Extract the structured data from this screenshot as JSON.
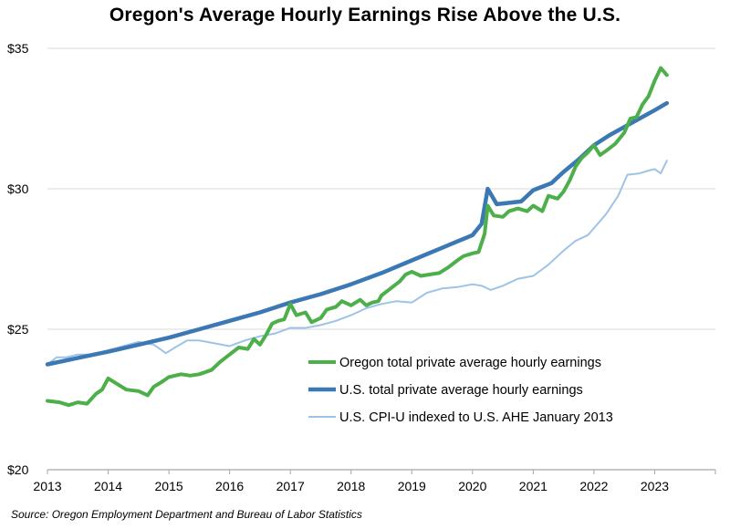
{
  "chart_data": {
    "type": "line",
    "title": "Oregon's Average Hourly Earnings Rise Above the U.S.",
    "xlabel": "",
    "ylabel": "",
    "xlim": [
      2013.0,
      2024.0
    ],
    "ylim": [
      20,
      35
    ],
    "x_ticks": [
      "2013",
      "2014",
      "2015",
      "2016",
      "2017",
      "2018",
      "2019",
      "2020",
      "2021",
      "2022",
      "2023"
    ],
    "y_ticks": [
      "$20",
      "$25",
      "$30",
      "$35"
    ],
    "grid": "horizontal",
    "legend_position": "lower-right",
    "series": [
      {
        "name": "Oregon total private average hourly earnings",
        "color": "#4daf4a",
        "points": [
          [
            2013.0,
            22.45
          ],
          [
            2013.2,
            22.4
          ],
          [
            2013.35,
            22.3
          ],
          [
            2013.5,
            22.4
          ],
          [
            2013.65,
            22.35
          ],
          [
            2013.8,
            22.7
          ],
          [
            2013.9,
            22.85
          ],
          [
            2014.0,
            23.25
          ],
          [
            2014.15,
            23.05
          ],
          [
            2014.3,
            22.85
          ],
          [
            2014.5,
            22.8
          ],
          [
            2014.65,
            22.65
          ],
          [
            2014.75,
            22.95
          ],
          [
            2014.9,
            23.15
          ],
          [
            2015.0,
            23.3
          ],
          [
            2015.2,
            23.4
          ],
          [
            2015.35,
            23.35
          ],
          [
            2015.5,
            23.4
          ],
          [
            2015.7,
            23.55
          ],
          [
            2015.85,
            23.85
          ],
          [
            2016.0,
            24.1
          ],
          [
            2016.15,
            24.35
          ],
          [
            2016.3,
            24.3
          ],
          [
            2016.4,
            24.65
          ],
          [
            2016.5,
            24.45
          ],
          [
            2016.6,
            24.8
          ],
          [
            2016.7,
            25.2
          ],
          [
            2016.8,
            25.3
          ],
          [
            2016.9,
            25.35
          ],
          [
            2017.0,
            25.9
          ],
          [
            2017.1,
            25.5
          ],
          [
            2017.25,
            25.6
          ],
          [
            2017.35,
            25.25
          ],
          [
            2017.5,
            25.4
          ],
          [
            2017.6,
            25.7
          ],
          [
            2017.75,
            25.8
          ],
          [
            2017.85,
            26.0
          ],
          [
            2018.0,
            25.85
          ],
          [
            2018.15,
            26.05
          ],
          [
            2018.25,
            25.85
          ],
          [
            2018.35,
            25.95
          ],
          [
            2018.45,
            26.0
          ],
          [
            2018.5,
            26.2
          ],
          [
            2018.65,
            26.45
          ],
          [
            2018.8,
            26.7
          ],
          [
            2018.9,
            26.95
          ],
          [
            2019.0,
            27.05
          ],
          [
            2019.15,
            26.9
          ],
          [
            2019.3,
            26.95
          ],
          [
            2019.45,
            27.0
          ],
          [
            2019.6,
            27.2
          ],
          [
            2019.75,
            27.45
          ],
          [
            2019.85,
            27.6
          ],
          [
            2020.0,
            27.7
          ],
          [
            2020.1,
            27.75
          ],
          [
            2020.2,
            28.4
          ],
          [
            2020.25,
            29.4
          ],
          [
            2020.35,
            29.05
          ],
          [
            2020.5,
            29.0
          ],
          [
            2020.6,
            29.2
          ],
          [
            2020.75,
            29.3
          ],
          [
            2020.9,
            29.2
          ],
          [
            2021.0,
            29.4
          ],
          [
            2021.15,
            29.2
          ],
          [
            2021.25,
            29.75
          ],
          [
            2021.4,
            29.65
          ],
          [
            2021.5,
            29.9
          ],
          [
            2021.6,
            30.3
          ],
          [
            2021.7,
            30.8
          ],
          [
            2021.8,
            31.1
          ],
          [
            2021.9,
            31.3
          ],
          [
            2022.0,
            31.55
          ],
          [
            2022.1,
            31.2
          ],
          [
            2022.2,
            31.35
          ],
          [
            2022.35,
            31.6
          ],
          [
            2022.5,
            32.0
          ],
          [
            2022.6,
            32.5
          ],
          [
            2022.7,
            32.55
          ],
          [
            2022.8,
            33.0
          ],
          [
            2022.9,
            33.3
          ],
          [
            2023.0,
            33.85
          ],
          [
            2023.1,
            34.3
          ],
          [
            2023.2,
            34.05
          ]
        ]
      },
      {
        "name": "U.S. total private average hourly earnings",
        "color": "#3c78b4",
        "points": [
          [
            2013.0,
            23.75
          ],
          [
            2013.5,
            23.98
          ],
          [
            2014.0,
            24.2
          ],
          [
            2014.5,
            24.45
          ],
          [
            2015.0,
            24.7
          ],
          [
            2015.5,
            25.0
          ],
          [
            2016.0,
            25.3
          ],
          [
            2016.5,
            25.6
          ],
          [
            2017.0,
            25.95
          ],
          [
            2017.5,
            26.25
          ],
          [
            2018.0,
            26.6
          ],
          [
            2018.5,
            27.0
          ],
          [
            2019.0,
            27.45
          ],
          [
            2019.5,
            27.9
          ],
          [
            2020.0,
            28.35
          ],
          [
            2020.15,
            28.75
          ],
          [
            2020.25,
            30.0
          ],
          [
            2020.4,
            29.45
          ],
          [
            2020.6,
            29.5
          ],
          [
            2020.8,
            29.55
          ],
          [
            2021.0,
            29.95
          ],
          [
            2021.3,
            30.2
          ],
          [
            2021.5,
            30.6
          ],
          [
            2021.75,
            31.05
          ],
          [
            2022.0,
            31.55
          ],
          [
            2022.25,
            31.9
          ],
          [
            2022.5,
            32.2
          ],
          [
            2022.75,
            32.5
          ],
          [
            2023.0,
            32.8
          ],
          [
            2023.2,
            33.05
          ]
        ]
      },
      {
        "name": "U.S. CPI-U indexed to U.S. AHE January 2013",
        "color": "#9dc3e6",
        "points": [
          [
            2013.0,
            23.75
          ],
          [
            2013.15,
            24.0
          ],
          [
            2013.3,
            24.0
          ],
          [
            2013.5,
            24.1
          ],
          [
            2013.75,
            24.1
          ],
          [
            2014.0,
            24.25
          ],
          [
            2014.25,
            24.4
          ],
          [
            2014.5,
            24.55
          ],
          [
            2014.75,
            24.45
          ],
          [
            2014.95,
            24.15
          ],
          [
            2015.1,
            24.35
          ],
          [
            2015.3,
            24.6
          ],
          [
            2015.5,
            24.6
          ],
          [
            2015.75,
            24.5
          ],
          [
            2016.0,
            24.4
          ],
          [
            2016.25,
            24.6
          ],
          [
            2016.5,
            24.75
          ],
          [
            2016.75,
            24.85
          ],
          [
            2017.0,
            25.05
          ],
          [
            2017.25,
            25.05
          ],
          [
            2017.5,
            25.15
          ],
          [
            2017.75,
            25.3
          ],
          [
            2018.0,
            25.5
          ],
          [
            2018.25,
            25.75
          ],
          [
            2018.5,
            25.9
          ],
          [
            2018.75,
            26.0
          ],
          [
            2019.0,
            25.95
          ],
          [
            2019.25,
            26.3
          ],
          [
            2019.5,
            26.45
          ],
          [
            2019.75,
            26.5
          ],
          [
            2020.0,
            26.6
          ],
          [
            2020.15,
            26.55
          ],
          [
            2020.3,
            26.4
          ],
          [
            2020.5,
            26.55
          ],
          [
            2020.75,
            26.8
          ],
          [
            2021.0,
            26.9
          ],
          [
            2021.25,
            27.3
          ],
          [
            2021.5,
            27.8
          ],
          [
            2021.7,
            28.15
          ],
          [
            2021.9,
            28.35
          ],
          [
            2022.0,
            28.6
          ],
          [
            2022.2,
            29.1
          ],
          [
            2022.4,
            29.75
          ],
          [
            2022.55,
            30.5
          ],
          [
            2022.75,
            30.55
          ],
          [
            2022.9,
            30.65
          ],
          [
            2023.0,
            30.7
          ],
          [
            2023.1,
            30.55
          ],
          [
            2023.2,
            31.0
          ]
        ]
      }
    ]
  },
  "source_text": "Source: Oregon Employment Department and Bureau of Labor Statistics"
}
